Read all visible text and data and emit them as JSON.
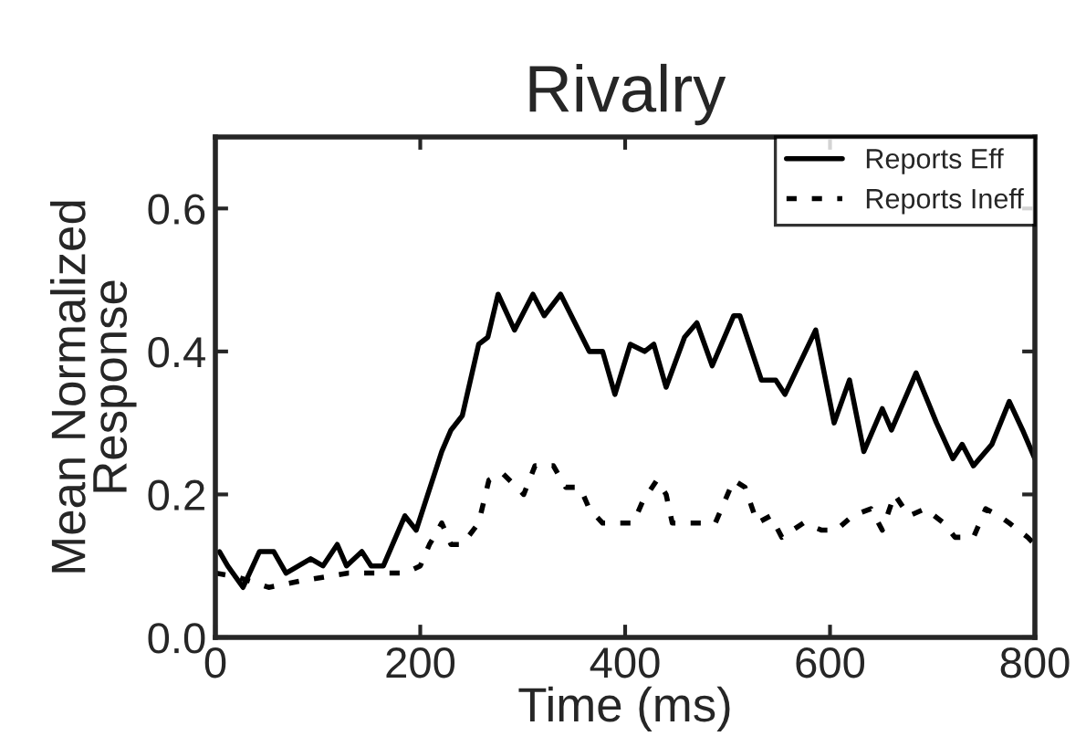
{
  "chart_data": {
    "type": "line",
    "title": "Rivalry",
    "xlabel": "Time (ms)",
    "ylabel": "Mean Normalized\nResponse",
    "xlim": [
      0,
      800
    ],
    "xticks": [
      0,
      200,
      400,
      600,
      800
    ],
    "ylim": [
      0,
      0.7
    ],
    "yticks": [
      {
        "value": 0,
        "label": "0.0"
      },
      {
        "value": 0.2,
        "label": "0.2"
      },
      {
        "value": 0.4,
        "label": "0.4"
      },
      {
        "value": 0.6,
        "label": "0.6"
      }
    ],
    "legend": "top right",
    "grid": false,
    "series": [
      {
        "name": "Reports Eff",
        "color": "#000000",
        "line_style": "solid",
        "x": [
          4,
          12,
          27,
          43,
          57,
          69,
          93,
          105,
          119,
          128,
          143,
          152,
          164,
          185,
          196,
          221,
          230,
          241,
          257,
          266,
          276,
          292,
          310,
          321,
          337,
          351,
          365,
          378,
          390,
          405,
          419,
          428,
          440,
          458,
          470,
          485,
          506,
          512,
          533,
          547,
          556,
          586,
          604,
          619,
          633,
          651,
          660,
          684,
          704,
          720,
          729,
          740,
          758,
          775,
          788,
          800
        ],
        "values": [
          0.12,
          0.1,
          0.07,
          0.12,
          0.12,
          0.09,
          0.11,
          0.1,
          0.13,
          0.1,
          0.12,
          0.1,
          0.1,
          0.17,
          0.15,
          0.26,
          0.29,
          0.31,
          0.41,
          0.42,
          0.48,
          0.43,
          0.48,
          0.45,
          0.48,
          0.44,
          0.4,
          0.4,
          0.34,
          0.41,
          0.4,
          0.41,
          0.35,
          0.42,
          0.44,
          0.38,
          0.45,
          0.45,
          0.36,
          0.36,
          0.34,
          0.43,
          0.3,
          0.36,
          0.26,
          0.32,
          0.29,
          0.37,
          0.3,
          0.25,
          0.27,
          0.24,
          0.27,
          0.33,
          0.29,
          0.25
        ]
      },
      {
        "name": "Reports Ineff",
        "color": "#000000",
        "line_style": "dotted",
        "x": [
          0,
          20,
          52,
          87,
          130,
          185,
          200,
          209,
          221,
          230,
          241,
          257,
          262,
          267,
          280,
          294,
          301,
          312,
          330,
          342,
          356,
          365,
          378,
          396,
          408,
          417,
          431,
          440,
          446,
          467,
          488,
          497,
          506,
          517,
          529,
          542,
          553,
          574,
          592,
          606,
          622,
          640,
          651,
          663,
          677,
          693,
          711,
          722,
          740,
          752,
          765,
          775,
          793,
          800
        ],
        "values": [
          0.09,
          0.085,
          0.07,
          0.08,
          0.09,
          0.09,
          0.1,
          0.13,
          0.16,
          0.13,
          0.13,
          0.16,
          0.19,
          0.22,
          0.23,
          0.21,
          0.2,
          0.24,
          0.24,
          0.21,
          0.21,
          0.18,
          0.16,
          0.16,
          0.16,
          0.19,
          0.22,
          0.2,
          0.16,
          0.16,
          0.16,
          0.19,
          0.22,
          0.21,
          0.16,
          0.17,
          0.14,
          0.16,
          0.15,
          0.15,
          0.17,
          0.18,
          0.15,
          0.2,
          0.17,
          0.18,
          0.16,
          0.14,
          0.14,
          0.18,
          0.17,
          0.16,
          0.14,
          0.13
        ]
      }
    ]
  }
}
